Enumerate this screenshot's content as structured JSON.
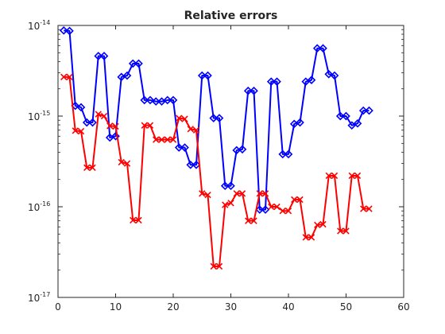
{
  "chart_data": {
    "type": "line",
    "title": "Relative errors",
    "xlabel": "",
    "ylabel": "",
    "xlim": [
      0,
      60
    ],
    "ylim": [
      1e-17,
      1e-14
    ],
    "yscale": "log",
    "grid": false,
    "xticks": [
      0,
      10,
      20,
      30,
      40,
      50,
      60
    ],
    "yticks": [
      {
        "value": 1e-17,
        "base": "10",
        "exp": "-17"
      },
      {
        "value": 1e-16,
        "base": "10",
        "exp": "-16"
      },
      {
        "value": 1e-15,
        "base": "10",
        "exp": "-15"
      },
      {
        "value": 1e-14,
        "base": "10",
        "exp": "-14"
      }
    ],
    "series": [
      {
        "color": "#0000ff",
        "marker": "diamond",
        "x": [
          1,
          2,
          3,
          4,
          5,
          6,
          7,
          8,
          9,
          10,
          11,
          12,
          13,
          14,
          15,
          16,
          17,
          18,
          19,
          20,
          21,
          22,
          23,
          24,
          25,
          26,
          27,
          28,
          29,
          30,
          31,
          32,
          33,
          34,
          35,
          36,
          37,
          38,
          39,
          40,
          41,
          42,
          43,
          44,
          45,
          46,
          47,
          48,
          49,
          50,
          51,
          52,
          53,
          54
        ],
        "y": [
          8.8e-15,
          8.7e-15,
          1.3e-15,
          1.25e-15,
          8.5e-16,
          8.5e-16,
          4.6e-15,
          4.6e-15,
          5.8e-16,
          6e-16,
          2.7e-15,
          2.8e-15,
          3.8e-15,
          3.8e-15,
          1.5e-15,
          1.5e-15,
          1.45e-15,
          1.45e-15,
          1.5e-15,
          1.5e-15,
          4.5e-16,
          4.5e-16,
          2.9e-16,
          2.9e-16,
          2.8e-15,
          2.8e-15,
          9.5e-16,
          9.5e-16,
          1.7e-16,
          1.7e-16,
          4.2e-16,
          4.3e-16,
          1.9e-15,
          1.9e-15,
          9.3e-17,
          9.3e-17,
          2.4e-15,
          2.4e-15,
          3.8e-16,
          3.8e-16,
          8.2e-16,
          8.5e-16,
          2.4e-15,
          2.5e-15,
          5.6e-15,
          5.6e-15,
          2.9e-15,
          2.8e-15,
          1e-15,
          1e-15,
          7.9e-16,
          8.3e-16,
          1.15e-15,
          1.15e-15
        ]
      },
      {
        "color": "#ff0000",
        "marker": "x",
        "x": [
          1,
          2,
          3,
          4,
          5,
          6,
          7,
          8,
          9,
          10,
          11,
          12,
          13,
          14,
          15,
          16,
          17,
          18,
          19,
          20,
          21,
          22,
          23,
          24,
          25,
          26,
          27,
          28,
          29,
          30,
          31,
          32,
          33,
          34,
          35,
          36,
          37,
          38,
          39,
          40,
          41,
          42,
          43,
          44,
          45,
          46,
          47,
          48,
          49,
          50,
          51,
          52,
          53,
          54
        ],
        "y": [
          2.7e-15,
          2.7e-15,
          6.9e-16,
          6.8e-16,
          2.7e-16,
          2.7e-16,
          1.05e-15,
          1e-15,
          7.8e-16,
          7.7e-16,
          3.1e-16,
          3e-16,
          7.1e-17,
          7.1e-17,
          7.9e-16,
          7.9e-16,
          5.5e-16,
          5.5e-16,
          5.5e-16,
          5.5e-16,
          9.5e-16,
          9.3e-16,
          7.2e-16,
          7e-16,
          1.4e-16,
          1.35e-16,
          2.2e-17,
          2.2e-17,
          1.05e-16,
          1.1e-16,
          1.4e-16,
          1.4e-16,
          7e-17,
          7e-17,
          1.4e-16,
          1.4e-16,
          1e-16,
          1e-16,
          9e-17,
          9e-17,
          1.2e-16,
          1.2e-16,
          4.6e-17,
          4.6e-17,
          6.3e-17,
          6.4e-17,
          2.2e-16,
          2.2e-16,
          5.4e-17,
          5.4e-17,
          2.2e-16,
          2.2e-16,
          9.5e-17,
          9.5e-17
        ]
      }
    ]
  }
}
